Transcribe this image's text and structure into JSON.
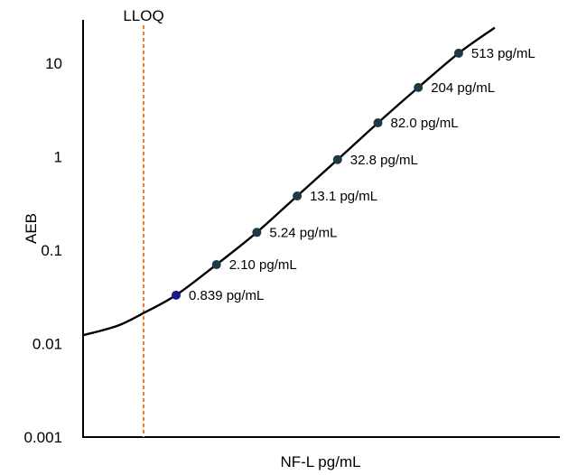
{
  "chart_data": {
    "type": "line",
    "title": "",
    "xlabel": "NF-L pg/mL",
    "ylabel": "AEB",
    "yscale": "log",
    "ylim": [
      0.001,
      25
    ],
    "y_ticks": [
      "0.001",
      "0.01",
      "0.1",
      "1",
      "10"
    ],
    "y_tick_values": [
      0.001,
      0.01,
      0.1,
      1,
      10
    ],
    "lloq_label": "LLOQ",
    "lloq_line_color": "#ED7D31",
    "point_color": "#1F3A46",
    "lowest_point_color": "#1A1A8C",
    "curve_color": "#000000",
    "grid": false,
    "points": [
      {
        "label": "0.839 pg/mL",
        "aeb": 0.033
      },
      {
        "label": "2.10 pg/mL",
        "aeb": 0.07
      },
      {
        "label": "5.24 pg/mL",
        "aeb": 0.155
      },
      {
        "label": "13.1 pg/mL",
        "aeb": 0.38
      },
      {
        "label": "32.8 pg/mL",
        "aeb": 0.93
      },
      {
        "label": "82.0 pg/mL",
        "aeb": 2.3
      },
      {
        "label": "204 pg/mL",
        "aeb": 5.5
      },
      {
        "label": "513 pg/mL",
        "aeb": 12.8
      }
    ]
  }
}
